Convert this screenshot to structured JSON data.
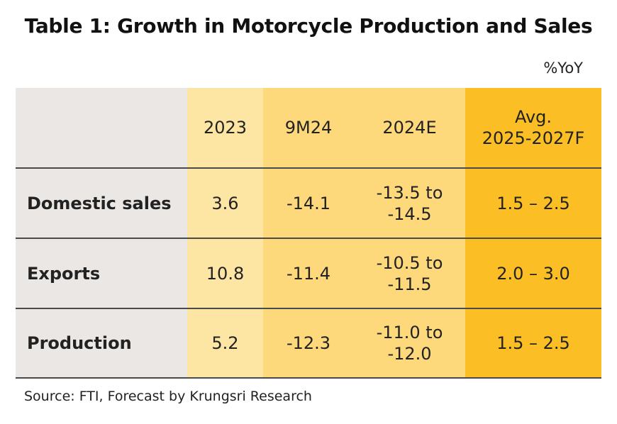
{
  "title": "Table 1: Growth in Motorcycle Production and Sales",
  "unit": "%YoY",
  "columns": [
    "2023",
    "9M24",
    "2024E",
    "Avg.\n2025-2027F"
  ],
  "rows": [
    {
      "label": "Domestic sales",
      "values": [
        "3.6",
        "-14.1",
        "-13.5 to\n-14.5",
        "1.5 – 2.5"
      ]
    },
    {
      "label": "Exports",
      "values": [
        "10.8",
        "-11.4",
        "-10.5 to\n-11.5",
        "2.0 – 3.0"
      ]
    },
    {
      "label": "Production",
      "values": [
        "5.2",
        "-12.3",
        "-11.0 to\n-12.0",
        "1.5 – 2.5"
      ]
    }
  ],
  "source": "Source: FTI, Forecast by Krungsri Research",
  "colors": {
    "label_column": "#ebe7e5",
    "col_2023": "#fde6a3",
    "col_9m24_2024e": "#fdd97c",
    "col_forecast": "#fbbf25",
    "rule": "#4a4a4a"
  }
}
